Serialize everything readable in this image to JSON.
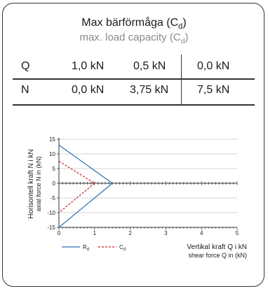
{
  "title": {
    "main_prefix": "Max bärförmåga (C",
    "main_sub": "d",
    "main_suffix": ")",
    "secondary_prefix": "max. load capacity (C",
    "secondary_sub": "d",
    "secondary_suffix": ")"
  },
  "table": {
    "rows": [
      {
        "label": "Q",
        "values": [
          "1,0 kN",
          "0,5 kN",
          "0,0 kN"
        ]
      },
      {
        "label": "N",
        "values": [
          "0,0 kN",
          "3,75 kN",
          "7,5 kN"
        ]
      }
    ]
  },
  "chart_data": {
    "type": "line",
    "ylabel": "Horisontell kraft N i kN",
    "ylabel2": "axial force N in (kN)",
    "xlabel": "Vertikal kraft Q i kN",
    "xlabel2": "shear force Q in (kN)",
    "xlim": [
      0,
      5
    ],
    "ylim": [
      -15,
      15
    ],
    "x_ticks": [
      "0",
      "1",
      "2",
      "3",
      "4",
      "5"
    ],
    "y_ticks": [
      "15",
      "10",
      "5",
      "0",
      "-5",
      "-10",
      "-15"
    ],
    "series": [
      {
        "name": "R",
        "name_sub": "d",
        "color": "#2a6fb8",
        "style": "solid",
        "x": [
          0,
          1.5,
          0
        ],
        "y": [
          13,
          0,
          -15
        ]
      },
      {
        "name": "C",
        "name_sub": "d",
        "color": "#d62020",
        "style": "dashed",
        "x": [
          0,
          1.0,
          0
        ],
        "y": [
          7.5,
          0,
          -10
        ]
      }
    ]
  }
}
